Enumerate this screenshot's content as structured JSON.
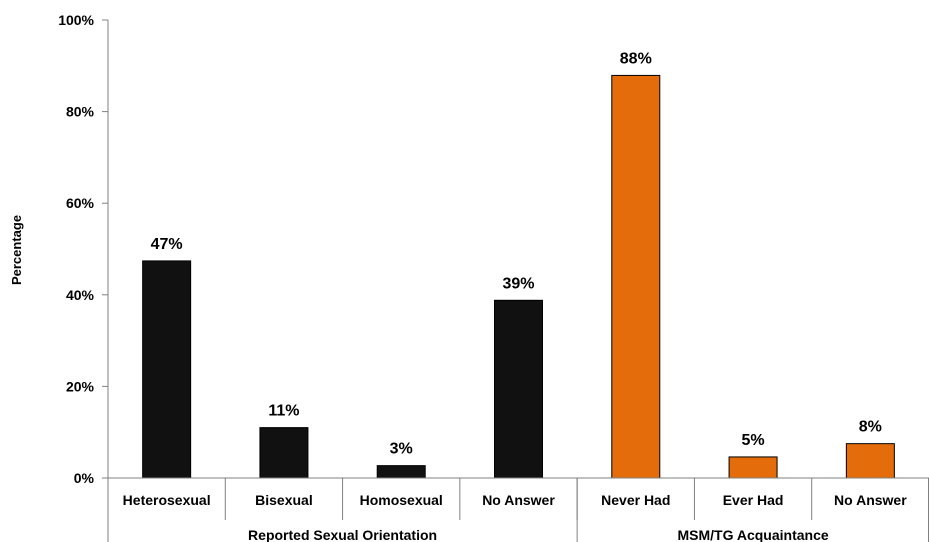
{
  "chart_data": {
    "type": "bar",
    "ylabel": "Percentage",
    "ylim": [
      0,
      100
    ],
    "yticks": [
      "0%",
      "20%",
      "40%",
      "60%",
      "80%",
      "100%"
    ],
    "grid": false,
    "legend": "none",
    "categories": [
      "Heterosexual",
      "Bisexual",
      "Homosexual",
      "No Answer",
      "Never Had",
      "Ever Had",
      "No Answer"
    ],
    "values": [
      47,
      11,
      3,
      39,
      88,
      5,
      8
    ],
    "value_labels": [
      "47%",
      "11%",
      "3%",
      "39%",
      "88%",
      "5%",
      "8%"
    ],
    "groups": [
      {
        "label": "Reported Sexual Orientation",
        "color": "#111111",
        "categories": [
          "Heterosexual",
          "Bisexual",
          "Homosexual",
          "No Answer"
        ]
      },
      {
        "label": "MSM/TG Acquaintance",
        "color": "#E46C0A",
        "categories": [
          "Never Had",
          "Ever Had",
          "No Answer"
        ]
      }
    ],
    "bar_values_exact": [
      47.4,
      11.0,
      2.7,
      38.8,
      87.9,
      4.6,
      7.5
    ]
  }
}
